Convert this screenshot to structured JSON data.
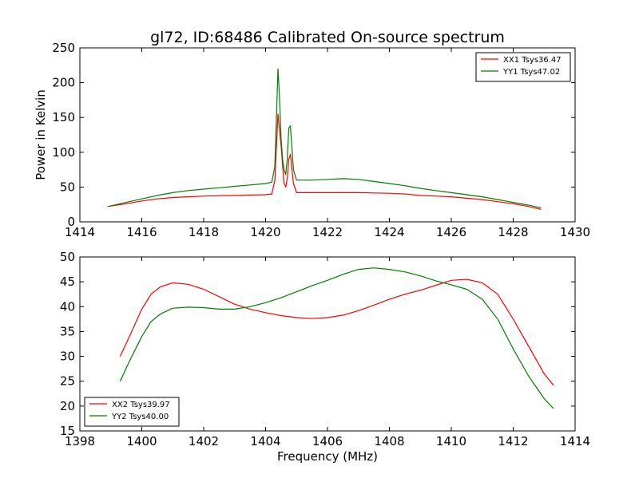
{
  "figure": {
    "title": "gl72, ID:68486 Calibrated On-source spectrum",
    "shared_xlabel": "Frequency (MHz)"
  },
  "chart_data": [
    {
      "type": "line",
      "title": "gl72, ID:68486 Calibrated On-source spectrum",
      "xlabel": "",
      "ylabel": "Power in Kelvin",
      "xlim": [
        1414,
        1430
      ],
      "ylim": [
        0,
        250
      ],
      "xticks": [
        "1414",
        "1416",
        "1418",
        "1420",
        "1422",
        "1424",
        "1426",
        "1428",
        "1430"
      ],
      "yticks": [
        "0",
        "50",
        "100",
        "150",
        "200",
        "250"
      ],
      "grid": false,
      "legend": "top-right",
      "series": [
        {
          "name": "XX1 Tsys36.47",
          "color": "#ff0000",
          "x": [
            1414.9,
            1415.5,
            1416.0,
            1416.5,
            1417.0,
            1417.5,
            1418.0,
            1418.5,
            1419.0,
            1419.5,
            1420.0,
            1420.2,
            1420.3,
            1420.4,
            1420.5,
            1420.55,
            1420.6,
            1420.65,
            1420.7,
            1420.75,
            1420.8,
            1420.9,
            1421.0,
            1421.5,
            1422.0,
            1422.5,
            1423.0,
            1423.5,
            1424.0,
            1424.5,
            1425.0,
            1425.5,
            1426.0,
            1426.5,
            1427.0,
            1427.5,
            1428.0,
            1428.5,
            1428.9
          ],
          "y": [
            22,
            26,
            30,
            33,
            35,
            36,
            37,
            37.5,
            38,
            38.5,
            39,
            40,
            60,
            155,
            110,
            80,
            55,
            50,
            62,
            90,
            97,
            55,
            42,
            42,
            42,
            42,
            42,
            41.5,
            41,
            40,
            38,
            37,
            36,
            34,
            32,
            29,
            26,
            22,
            18
          ]
        },
        {
          "name": "YY1 Tsys47.02",
          "color": "#007f00",
          "x": [
            1414.9,
            1415.5,
            1416.0,
            1416.5,
            1417.0,
            1417.5,
            1418.0,
            1418.5,
            1419.0,
            1419.5,
            1420.0,
            1420.2,
            1420.3,
            1420.4,
            1420.45,
            1420.5,
            1420.55,
            1420.6,
            1420.65,
            1420.7,
            1420.75,
            1420.8,
            1420.9,
            1421.0,
            1421.5,
            1422.0,
            1422.5,
            1423.0,
            1423.5,
            1424.0,
            1424.5,
            1425.0,
            1425.5,
            1426.0,
            1426.5,
            1427.0,
            1427.5,
            1428.0,
            1428.5,
            1428.9
          ],
          "y": [
            22,
            28,
            33,
            38,
            42,
            45,
            47,
            49,
            51,
            53,
            55,
            57,
            80,
            220,
            180,
            120,
            90,
            75,
            68,
            90,
            135,
            138,
            75,
            60,
            60,
            61,
            62,
            61,
            58,
            55,
            52,
            48,
            45,
            42,
            39,
            36,
            32,
            28,
            24,
            20
          ]
        }
      ]
    },
    {
      "type": "line",
      "title": "",
      "xlabel": "Frequency (MHz)",
      "ylabel": "",
      "xlim": [
        1398,
        1414
      ],
      "ylim": [
        15,
        50
      ],
      "xticks": [
        "1398",
        "1400",
        "1402",
        "1404",
        "1406",
        "1408",
        "1410",
        "1412",
        "1414"
      ],
      "yticks": [
        "15",
        "20",
        "25",
        "30",
        "35",
        "40",
        "45",
        "50"
      ],
      "grid": false,
      "legend": "bottom-left",
      "series": [
        {
          "name": "XX2 Tsys39.97",
          "color": "#ff0000",
          "x": [
            1399.3,
            1399.6,
            1400.0,
            1400.3,
            1400.6,
            1401.0,
            1401.5,
            1402.0,
            1402.5,
            1403.0,
            1403.5,
            1404.0,
            1404.5,
            1405.0,
            1405.5,
            1406.0,
            1406.5,
            1407.0,
            1407.5,
            1408.0,
            1408.5,
            1409.0,
            1409.5,
            1410.0,
            1410.5,
            1411.0,
            1411.5,
            1412.0,
            1412.5,
            1413.0,
            1413.3
          ],
          "y": [
            30,
            34,
            39.5,
            42.5,
            44,
            44.8,
            44.5,
            43.5,
            42,
            40.5,
            39.5,
            38.8,
            38.2,
            37.8,
            37.6,
            37.8,
            38.3,
            39.2,
            40.3,
            41.5,
            42.5,
            43.3,
            44.3,
            45.3,
            45.5,
            44.8,
            42.5,
            37.5,
            32,
            26.5,
            24.2
          ]
        },
        {
          "name": "YY2 Tsys40.00",
          "color": "#007f00",
          "x": [
            1399.3,
            1399.6,
            1400.0,
            1400.3,
            1400.6,
            1401.0,
            1401.5,
            1402.0,
            1402.5,
            1403.0,
            1403.5,
            1404.0,
            1404.5,
            1405.0,
            1405.5,
            1406.0,
            1406.5,
            1407.0,
            1407.5,
            1408.0,
            1408.5,
            1409.0,
            1409.5,
            1410.0,
            1410.5,
            1411.0,
            1411.5,
            1412.0,
            1412.5,
            1413.0,
            1413.3
          ],
          "y": [
            25,
            29,
            34,
            37,
            38.5,
            39.7,
            39.9,
            39.8,
            39.5,
            39.5,
            40,
            40.8,
            41.8,
            43,
            44.2,
            45.3,
            46.5,
            47.5,
            47.8,
            47.5,
            47,
            46.2,
            45.2,
            44.4,
            43.5,
            41.5,
            37.5,
            31.5,
            26,
            21.5,
            19.5
          ]
        }
      ]
    }
  ]
}
